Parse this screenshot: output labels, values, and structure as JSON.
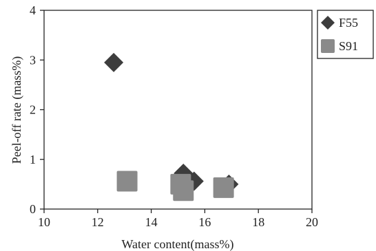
{
  "chart_data": {
    "type": "scatter",
    "xlabel": "Water content(mass%)",
    "ylabel": "Peel-off rate (mass%)",
    "xlim": [
      10,
      20
    ],
    "ylim": [
      0,
      4
    ],
    "x_ticks": [
      10,
      12,
      14,
      16,
      18,
      20
    ],
    "y_ticks": [
      0,
      1,
      2,
      3,
      4
    ],
    "grid": false,
    "legend_position": "right-top",
    "series": [
      {
        "name": "F55",
        "marker": "diamond",
        "color": "#3d3d3d",
        "points": [
          {
            "x": 12.6,
            "y": 2.95
          },
          {
            "x": 15.2,
            "y": 0.72
          },
          {
            "x": 15.6,
            "y": 0.56
          },
          {
            "x": 16.9,
            "y": 0.5
          }
        ]
      },
      {
        "name": "S91",
        "marker": "square",
        "color": "#8a8a8a",
        "points": [
          {
            "x": 13.1,
            "y": 0.56
          },
          {
            "x": 15.1,
            "y": 0.5
          },
          {
            "x": 15.2,
            "y": 0.37
          },
          {
            "x": 16.7,
            "y": 0.43
          }
        ]
      }
    ]
  }
}
